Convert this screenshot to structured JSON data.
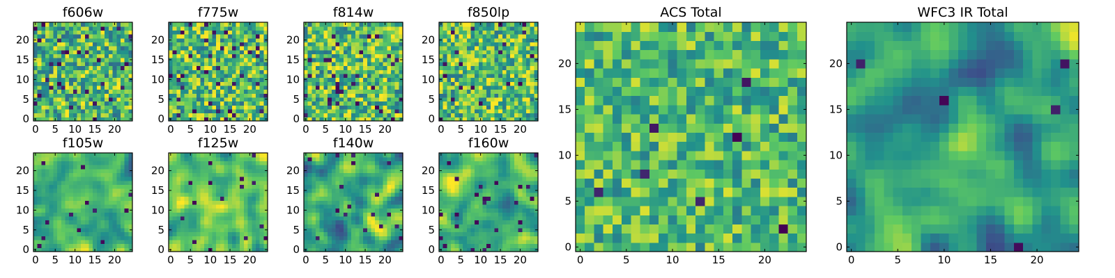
{
  "chart_data": {
    "type": "heatmap",
    "grid_size": 25,
    "colormap": [
      "#440154",
      "#3b528b",
      "#21918c",
      "#5ec962",
      "#fde725"
    ],
    "value_range": [
      0,
      1
    ],
    "panels": [
      {
        "id": "f606w",
        "title": "f606w",
        "seed": 11,
        "smooth": 0,
        "dark": 0.05,
        "mean": 0.68,
        "spread": 0.15,
        "xticks": [
          0,
          5,
          10,
          15,
          20
        ],
        "xtick_labels": [
          "0",
          "5",
          "10",
          "15",
          "20"
        ],
        "yticks": [
          0,
          5,
          10,
          15,
          20
        ],
        "ytick_labels": [
          "0",
          "5",
          "10",
          "15",
          "20"
        ]
      },
      {
        "id": "f775w",
        "title": "f775w",
        "seed": 23,
        "smooth": 0,
        "dark": 0.06,
        "mean": 0.7,
        "spread": 0.15,
        "xticks": [
          0,
          5,
          10,
          15,
          20
        ],
        "xtick_labels": [
          "0",
          "5",
          "10",
          "15",
          "20"
        ],
        "yticks": [
          0,
          5,
          10,
          15,
          20
        ],
        "ytick_labels": [
          "0",
          "5",
          "10",
          "15",
          "20"
        ]
      },
      {
        "id": "f814w",
        "title": "f814w",
        "seed": 37,
        "smooth": 0,
        "dark": 0.05,
        "mean": 0.7,
        "spread": 0.15,
        "xticks": [
          0,
          5,
          10,
          15,
          20
        ],
        "xtick_labels": [
          "0",
          "5",
          "10",
          "15",
          "20"
        ],
        "yticks": [
          0,
          5,
          10,
          15,
          20
        ],
        "ytick_labels": [
          "0",
          "5",
          "10",
          "15",
          "20"
        ]
      },
      {
        "id": "f850lp",
        "title": "f850lp",
        "seed": 41,
        "smooth": 0,
        "dark": 0.04,
        "mean": 0.7,
        "spread": 0.15,
        "xticks": [
          0,
          5,
          10,
          15,
          20
        ],
        "xtick_labels": [
          "0",
          "5",
          "10",
          "15",
          "20"
        ],
        "yticks": [
          0,
          5,
          10,
          15,
          20
        ],
        "ytick_labels": [
          "0",
          "5",
          "10",
          "15",
          "20"
        ]
      },
      {
        "id": "f105w",
        "title": "f105w",
        "seed": 53,
        "smooth": 1,
        "dark": 0.01,
        "mean": 0.66,
        "spread": 0.16,
        "xticks": [
          0,
          5,
          10,
          15,
          20
        ],
        "xtick_labels": [
          "0",
          "5",
          "10",
          "15",
          "20"
        ],
        "yticks": [
          0,
          5,
          10,
          15,
          20
        ],
        "ytick_labels": [
          "0",
          "5",
          "10",
          "15",
          "20"
        ]
      },
      {
        "id": "f125w",
        "title": "f125w",
        "seed": 67,
        "smooth": 1,
        "dark": 0.015,
        "mean": 0.72,
        "spread": 0.15,
        "xticks": [
          0,
          5,
          10,
          15,
          20
        ],
        "xtick_labels": [
          "0",
          "5",
          "10",
          "15",
          "20"
        ],
        "yticks": [
          0,
          5,
          10,
          15,
          20
        ],
        "ytick_labels": [
          "0",
          "5",
          "10",
          "15",
          "20"
        ]
      },
      {
        "id": "f140w",
        "title": "f140w",
        "seed": 79,
        "smooth": 1,
        "dark": 0.02,
        "mean": 0.62,
        "spread": 0.18,
        "xticks": [
          0,
          5,
          10,
          15,
          20
        ],
        "xtick_labels": [
          "0",
          "5",
          "10",
          "15",
          "20"
        ],
        "yticks": [
          0,
          5,
          10,
          15,
          20
        ],
        "ytick_labels": [
          "0",
          "5",
          "10",
          "15",
          "20"
        ]
      },
      {
        "id": "f160w",
        "title": "f160w",
        "seed": 83,
        "smooth": 1,
        "dark": 0.03,
        "mean": 0.62,
        "spread": 0.2,
        "xticks": [
          0,
          5,
          10,
          15,
          20
        ],
        "xtick_labels": [
          "0",
          "5",
          "10",
          "15",
          "20"
        ],
        "yticks": [
          0,
          5,
          10,
          15,
          20
        ],
        "ytick_labels": [
          "0",
          "5",
          "10",
          "15",
          "20"
        ]
      },
      {
        "id": "acs-total",
        "title": "ACS Total",
        "seed": 97,
        "smooth": 0,
        "dark": 0.012,
        "mean": 0.68,
        "spread": 0.12,
        "xticks": [
          0,
          5,
          10,
          15,
          20
        ],
        "xtick_labels": [
          "0",
          "5",
          "10",
          "15",
          "20"
        ],
        "yticks": [
          0,
          5,
          10,
          15,
          20
        ],
        "ytick_labels": [
          "0",
          "5",
          "10",
          "15",
          "20"
        ]
      },
      {
        "id": "wfc3-ir-total",
        "title": "WFC3 IR Total",
        "seed": 101,
        "smooth": 1,
        "dark": 0.012,
        "mean": 0.6,
        "spread": 0.17,
        "xticks": [
          0,
          5,
          10,
          15,
          20
        ],
        "xtick_labels": [
          "0",
          "5",
          "10",
          "15",
          "20"
        ],
        "yticks": [
          0,
          5,
          10,
          15,
          20
        ],
        "ytick_labels": [
          "0",
          "5",
          "10",
          "15",
          "20"
        ]
      }
    ]
  }
}
